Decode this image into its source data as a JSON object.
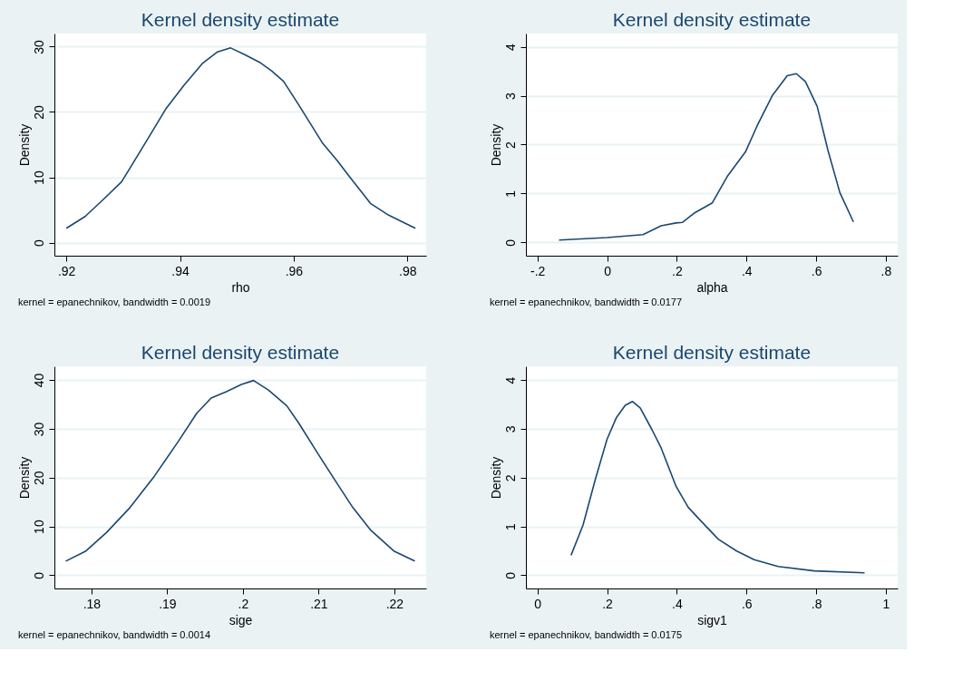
{
  "chart_data": [
    {
      "type": "line",
      "title": "Kernel density estimate",
      "xlabel": "rho",
      "ylabel": "Density",
      "color": "#1a476f",
      "grid": "y",
      "marker": "none",
      "x": [
        0.92,
        0.9233,
        0.9265,
        0.9297,
        0.9312,
        0.9344,
        0.9376,
        0.9407,
        0.9439,
        0.9466,
        0.9489,
        0.9513,
        0.954,
        0.9561,
        0.9582,
        0.9608,
        0.9651,
        0.9677,
        0.9698,
        0.9735,
        0.9767,
        0.9814
      ],
      "values": [
        2.2,
        4.0,
        6.6,
        9.3,
        11.4,
        16.0,
        20.6,
        24.1,
        27.4,
        29.2,
        29.8,
        28.8,
        27.6,
        26.3,
        24.7,
        21.2,
        15.2,
        12.5,
        10.1,
        6.0,
        4.2,
        2.2
      ],
      "xlim": [
        0.9179,
        0.9833
      ],
      "ylim": [
        -2,
        32
      ],
      "xticks": [
        {
          "value": 0.92,
          "label": ".92"
        },
        {
          "value": 0.94,
          "label": ".94"
        },
        {
          "value": 0.96,
          "label": ".96"
        },
        {
          "value": 0.98,
          "label": ".98"
        }
      ],
      "yticks": [
        0,
        10,
        20,
        30
      ],
      "annotations": [
        "kernel = epanechnikov, bandwidth = 0.0019"
      ]
    },
    {
      "type": "line",
      "title": "Kernel density estimate",
      "xlabel": "alpha",
      "ylabel": "Density",
      "color": "#1a476f",
      "grid": "y",
      "marker": "none",
      "x": [
        -0.138,
        0.0,
        0.103,
        0.155,
        0.198,
        0.216,
        0.25,
        0.302,
        0.345,
        0.397,
        0.431,
        0.474,
        0.517,
        0.543,
        0.569,
        0.603,
        0.634,
        0.668,
        0.707
      ],
      "values": [
        0.05,
        0.1,
        0.16,
        0.34,
        0.4,
        0.41,
        0.6,
        0.81,
        1.35,
        1.85,
        2.39,
        3.0,
        3.41,
        3.45,
        3.29,
        2.78,
        1.88,
        1.02,
        0.42
      ],
      "xlim": [
        -0.233,
        0.834
      ],
      "ylim": [
        -0.27,
        4.27
      ],
      "xticks": [
        {
          "value": -0.2,
          "label": "-.2"
        },
        0,
        {
          "value": 0.2,
          "label": ".2"
        },
        {
          "value": 0.4,
          "label": ".4"
        },
        {
          "value": 0.6,
          "label": ".6"
        },
        {
          "value": 0.8,
          "label": ".8"
        }
      ],
      "yticks": [
        0,
        1,
        2,
        3,
        4
      ],
      "annotations": [
        "kernel = epanechnikov, bandwidth = 0.0177"
      ]
    },
    {
      "type": "line",
      "title": "Kernel density estimate",
      "xlabel": "sige",
      "ylabel": "Density",
      "color": "#1a476f",
      "grid": "y",
      "marker": "none",
      "x": [
        0.1766,
        0.1792,
        0.182,
        0.1851,
        0.1883,
        0.1915,
        0.1939,
        0.1958,
        0.1978,
        0.1998,
        0.2014,
        0.2034,
        0.2058,
        0.2074,
        0.2097,
        0.2121,
        0.2145,
        0.2169,
        0.22,
        0.2227
      ],
      "values": [
        2.9,
        4.9,
        8.8,
        13.9,
        20.3,
        27.5,
        33.2,
        36.3,
        37.6,
        39.1,
        39.9,
        37.9,
        34.7,
        31.1,
        25.4,
        19.6,
        13.9,
        9.2,
        4.9,
        2.9
      ],
      "xlim": [
        0.1751,
        0.2242
      ],
      "ylim": [
        -2.7,
        42.8
      ],
      "xticks": [
        {
          "value": 0.18,
          "label": ".18"
        },
        {
          "value": 0.19,
          "label": ".19"
        },
        {
          "value": 0.2,
          "label": ".2"
        },
        {
          "value": 0.21,
          "label": ".21"
        },
        {
          "value": 0.22,
          "label": ".22"
        }
      ],
      "yticks": [
        0,
        10,
        20,
        30,
        40
      ],
      "annotations": [
        "kernel = epanechnikov, bandwidth = 0.0014"
      ]
    },
    {
      "type": "line",
      "title": "Kernel density estimate",
      "xlabel": "sigv1",
      "ylabel": "Density",
      "color": "#1a476f",
      "grid": "y",
      "marker": "none",
      "x": [
        0.0966,
        0.131,
        0.166,
        0.2,
        0.226,
        0.252,
        0.273,
        0.295,
        0.329,
        0.355,
        0.398,
        0.433,
        0.467,
        0.519,
        0.571,
        0.622,
        0.691,
        0.795,
        0.939
      ],
      "values": [
        0.41,
        1.03,
        1.96,
        2.79,
        3.22,
        3.48,
        3.56,
        3.43,
        2.98,
        2.61,
        1.82,
        1.39,
        1.13,
        0.74,
        0.5,
        0.32,
        0.18,
        0.09,
        0.05
      ],
      "xlim": [
        -0.033,
        1.034
      ],
      "ylim": [
        -0.27,
        4.28
      ],
      "xticks": [
        0,
        {
          "value": 0.2,
          "label": ".2"
        },
        {
          "value": 0.4,
          "label": ".4"
        },
        {
          "value": 0.6,
          "label": ".6"
        },
        {
          "value": 0.8,
          "label": ".8"
        },
        1
      ],
      "yticks": [
        0,
        1,
        2,
        3,
        4
      ],
      "annotations": [
        "kernel = epanechnikov, bandwidth = 0.0175"
      ]
    }
  ]
}
